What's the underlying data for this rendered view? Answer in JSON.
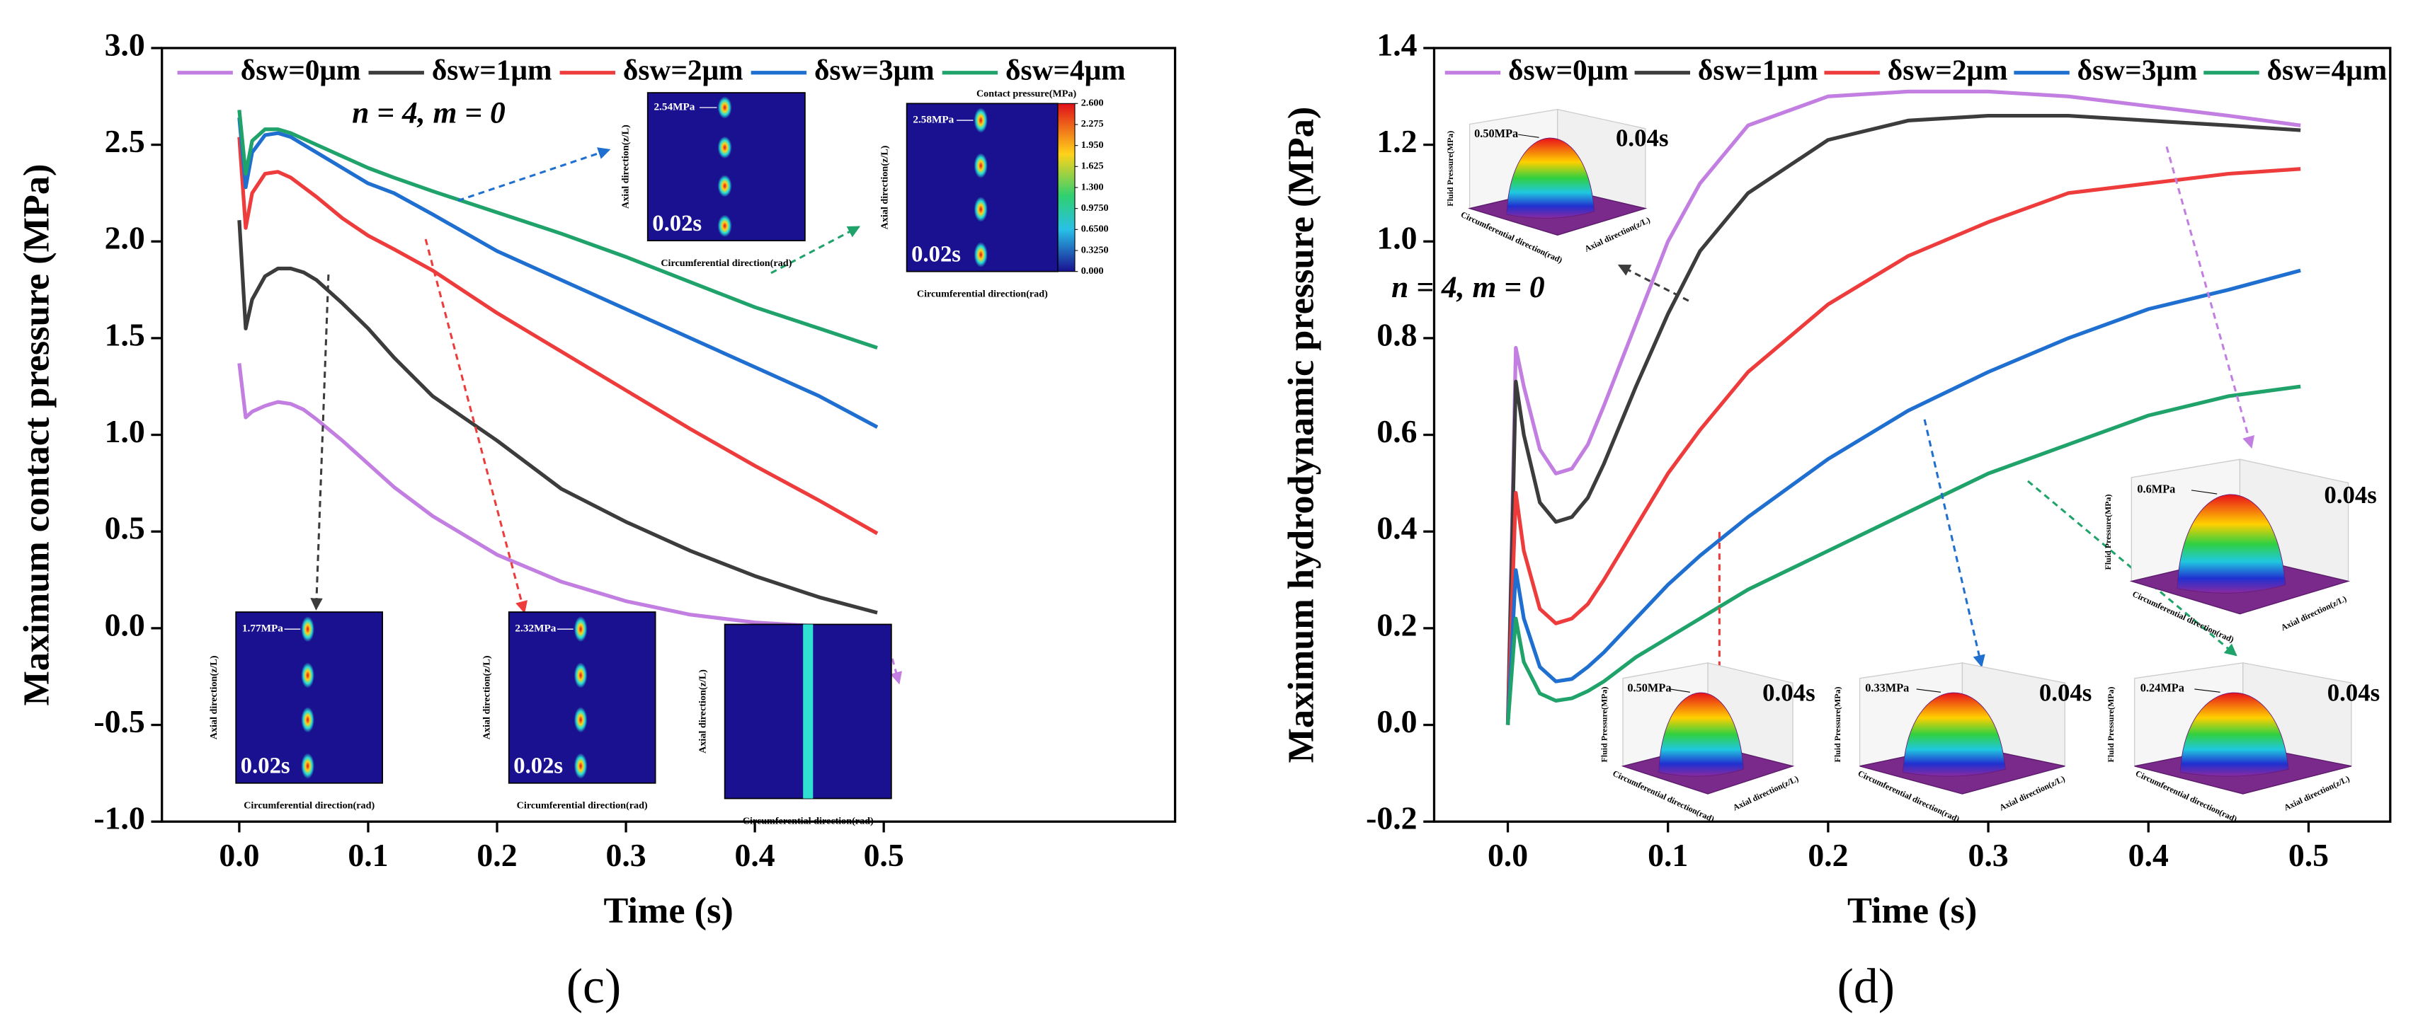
{
  "chart_data": [
    {
      "type": "line",
      "panel_label": "(c)",
      "x_label": "Time (s)",
      "y_label": "Maximum contact pressure (MPa)",
      "annotation": "n = 4, m = 0",
      "xlim": [
        -0.06,
        0.726
      ],
      "ylim": [
        -1,
        3
      ],
      "xticks": [
        {
          "value": 0,
          "label": "0.0"
        },
        0.1,
        0.2,
        0.3,
        0.4,
        0.5
      ],
      "yticks": [
        {
          "value": -1,
          "label": "-1.0"
        },
        -0.5,
        {
          "value": 0,
          "label": "0.0"
        },
        0.5,
        {
          "value": 1,
          "label": "1.0"
        },
        1.5,
        {
          "value": 2,
          "label": "2.0"
        },
        2.5,
        {
          "value": 3,
          "label": "3.0"
        }
      ],
      "x": [
        0,
        0.005,
        0.01,
        0.02,
        0.03,
        0.04,
        0.05,
        0.06,
        0.08,
        0.1,
        0.12,
        0.15,
        0.2,
        0.25,
        0.3,
        0.35,
        0.4,
        0.45,
        0.495
      ],
      "series": [
        {
          "name": "δsw=0μm",
          "color": "#c27ee0",
          "values": [
            1.37,
            1.09,
            1.12,
            1.15,
            1.17,
            1.16,
            1.13,
            1.08,
            0.97,
            0.85,
            0.73,
            0.58,
            0.38,
            0.24,
            0.14,
            0.07,
            0.03,
            0.01,
            0.0
          ]
        },
        {
          "name": "δsw=1μm",
          "color": "#3c3c3c",
          "values": [
            2.11,
            1.55,
            1.7,
            1.82,
            1.86,
            1.86,
            1.84,
            1.8,
            1.68,
            1.55,
            1.4,
            1.2,
            0.97,
            0.72,
            0.55,
            0.4,
            0.27,
            0.16,
            0.08
          ]
        },
        {
          "name": "δsw=2μm",
          "color": "#ee3b3b",
          "values": [
            2.54,
            2.07,
            2.25,
            2.35,
            2.36,
            2.33,
            2.28,
            2.23,
            2.12,
            2.03,
            1.96,
            1.85,
            1.63,
            1.43,
            1.23,
            1.03,
            0.84,
            0.66,
            0.49
          ]
        },
        {
          "name": "δsw=3μm",
          "color": "#1f6fd0",
          "values": [
            2.64,
            2.28,
            2.46,
            2.55,
            2.56,
            2.54,
            2.5,
            2.46,
            2.38,
            2.3,
            2.25,
            2.14,
            1.95,
            1.8,
            1.65,
            1.5,
            1.35,
            1.2,
            1.04
          ]
        },
        {
          "name": "δsw=4μm",
          "color": "#1fa36a",
          "values": [
            2.68,
            2.35,
            2.52,
            2.58,
            2.58,
            2.56,
            2.53,
            2.5,
            2.44,
            2.38,
            2.33,
            2.26,
            2.15,
            2.04,
            1.92,
            1.79,
            1.66,
            1.55,
            1.45
          ]
        }
      ],
      "insets": [
        {
          "label": "1.77MPa",
          "time": "0.02s",
          "x_label": "Circumferential direction(rad)",
          "y_label": "Axial direction(z/L)"
        },
        {
          "label": "2.32MPa",
          "time": "0.02s",
          "x_label": "Circumferential direction(rad)",
          "y_label": "Axial direction(z/L)"
        },
        {
          "x_label": "Circumferential direction(rad)",
          "y_label": "Axial direction(z/L)"
        },
        {
          "label": "2.54MPa",
          "time": "0.02s",
          "x_label": "Circumferential direction(rad)",
          "y_label": "Axial direction(z/L)"
        },
        {
          "label": "2.58MPa",
          "time": "0.02s",
          "x_label": "Circumferential direction(rad)",
          "y_label": "Axial direction(z/L)",
          "colorbar": {
            "title": "Contact pressure(MPa)",
            "ticks": [
              {
                "value": 2.6,
                "label": "2.600"
              },
              {
                "value": 2.275,
                "label": "2.275"
              },
              {
                "value": 1.95,
                "label": "1.950"
              },
              {
                "value": 1.625,
                "label": "1.625"
              },
              {
                "value": 1.3,
                "label": "1.300"
              },
              {
                "value": 0.975,
                "label": "0.9750"
              },
              {
                "value": 0.65,
                "label": "0.6500"
              },
              {
                "value": 0.325,
                "label": "0.3250"
              },
              {
                "value": 0,
                "label": "0.000"
              }
            ]
          }
        }
      ]
    },
    {
      "type": "line",
      "panel_label": "(d)",
      "x_label": "Time (s)",
      "y_label": "Maximum hydrodynamic pressure (MPa)",
      "annotation": "n = 4, m = 0",
      "xlim": [
        -0.046,
        0.551
      ],
      "ylim": [
        -0.2,
        1.4
      ],
      "xticks": [
        {
          "value": 0,
          "label": "0.0"
        },
        0.1,
        0.2,
        0.3,
        0.4,
        0.5
      ],
      "yticks": [
        -0.2,
        {
          "value": 0,
          "label": "0.0"
        },
        0.2,
        0.4,
        0.6,
        0.8,
        {
          "value": 1,
          "label": "1.0"
        },
        1.2,
        1.4
      ],
      "x": [
        0,
        0.005,
        0.01,
        0.02,
        0.03,
        0.04,
        0.05,
        0.06,
        0.08,
        0.1,
        0.12,
        0.15,
        0.2,
        0.25,
        0.3,
        0.35,
        0.4,
        0.45,
        0.495
      ],
      "series": [
        {
          "name": "δsw=0μm",
          "color": "#c27ee0",
          "values": [
            0,
            0.78,
            0.7,
            0.57,
            0.52,
            0.53,
            0.58,
            0.66,
            0.83,
            1.0,
            1.12,
            1.24,
            1.3,
            1.31,
            1.31,
            1.3,
            1.28,
            1.26,
            1.24
          ]
        },
        {
          "name": "δsw=1μm",
          "color": "#3c3c3c",
          "values": [
            0,
            0.71,
            0.6,
            0.46,
            0.42,
            0.43,
            0.47,
            0.54,
            0.7,
            0.85,
            0.98,
            1.1,
            1.21,
            1.25,
            1.26,
            1.26,
            1.25,
            1.24,
            1.23
          ]
        },
        {
          "name": "δsw=2μm",
          "color": "#ee3b3b",
          "values": [
            0,
            0.48,
            0.36,
            0.24,
            0.21,
            0.22,
            0.25,
            0.3,
            0.41,
            0.52,
            0.61,
            0.73,
            0.87,
            0.97,
            1.04,
            1.1,
            1.12,
            1.14,
            1.15
          ]
        },
        {
          "name": "δsw=3μm",
          "color": "#1f6fd0",
          "values": [
            0,
            0.32,
            0.22,
            0.12,
            0.09,
            0.095,
            0.12,
            0.15,
            0.22,
            0.29,
            0.35,
            0.43,
            0.55,
            0.65,
            0.73,
            0.8,
            0.86,
            0.9,
            0.94
          ]
        },
        {
          "name": "δsw=4μm",
          "color": "#1fa36a",
          "values": [
            0,
            0.22,
            0.13,
            0.065,
            0.05,
            0.055,
            0.07,
            0.09,
            0.14,
            0.18,
            0.22,
            0.28,
            0.36,
            0.44,
            0.52,
            0.58,
            0.64,
            0.68,
            0.7
          ]
        }
      ],
      "insets": [
        {
          "label": "0.50MPa",
          "time": "0.04s",
          "x_label": "Circumferential direction(rad)",
          "y_label": "Axial direction(z/L)",
          "z_label": "Fluid Pressure(MPa)"
        },
        {
          "label": "0.6MPa",
          "time": "0.04s",
          "x_label": "Circumferential direction(rad)",
          "y_label": "Axial direction(z/L)",
          "z_label": "Fluid Pressure(MPa)"
        },
        {
          "label": "0.50MPa",
          "time": "0.04s",
          "x_label": "Circumferential direction(rad)",
          "y_label": "Axial direction(z/L)",
          "z_label": "Fluid Pressure(MPa)"
        },
        {
          "label": "0.33MPa",
          "time": "0.04s",
          "x_label": "Circumferential direction(rad)",
          "y_label": "Axial direction(z/L)",
          "z_label": "Fluid Pressure(MPa)"
        },
        {
          "label": "0.24MPa",
          "time": "0.04s",
          "x_label": "Circumferential direction(rad)",
          "y_label": "Axial direction(z/L)",
          "z_label": "Fluid Pressure(MPa)"
        }
      ]
    }
  ]
}
